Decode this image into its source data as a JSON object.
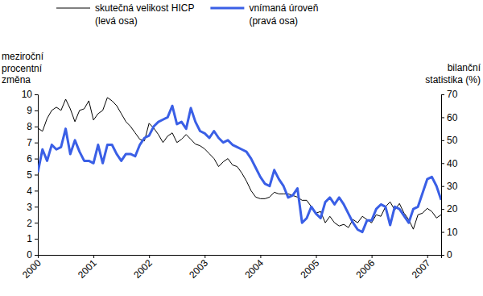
{
  "chart_data": {
    "type": "line",
    "y_label": "meziroční procentní změna",
    "y2_label": "bilanční statistika (%)",
    "categories": [
      "2000",
      null,
      null,
      null,
      null,
      null,
      null,
      null,
      null,
      null,
      null,
      null,
      "2001",
      null,
      null,
      null,
      null,
      null,
      null,
      null,
      null,
      null,
      null,
      null,
      "2002",
      null,
      null,
      null,
      null,
      null,
      null,
      null,
      null,
      null,
      null,
      null,
      "2003",
      null,
      null,
      null,
      null,
      null,
      null,
      null,
      null,
      null,
      null,
      null,
      "2004",
      null,
      null,
      null,
      null,
      null,
      null,
      null,
      null,
      null,
      null,
      null,
      "2005",
      null,
      null,
      null,
      null,
      null,
      null,
      null,
      null,
      null,
      null,
      null,
      "2006",
      null,
      null,
      null,
      null,
      null,
      null,
      null,
      null,
      null,
      null,
      null,
      "2007",
      null,
      null,
      null
    ],
    "series": [
      {
        "name": "skutečná velikost HICP (levá osa)",
        "color": "#000000",
        "axis": "y",
        "values": [
          7.9,
          7.7,
          8.5,
          9.0,
          9.2,
          9.0,
          9.7,
          9.1,
          8.3,
          9.0,
          9.1,
          9.6,
          8.4,
          8.8,
          9.0,
          9.8,
          9.6,
          9.3,
          8.8,
          8.3,
          8.0,
          7.6,
          7.2,
          7.1,
          8.2,
          7.9,
          7.5,
          7.0,
          7.4,
          7.6,
          7.0,
          7.2,
          7.5,
          7.2,
          6.9,
          6.8,
          6.6,
          6.3,
          6.0,
          5.5,
          5.8,
          6.0,
          5.6,
          5.5,
          5.1,
          4.6,
          4.0,
          3.6,
          3.5,
          3.5,
          3.6,
          3.9,
          3.8,
          3.8,
          3.8,
          3.7,
          3.6,
          3.4,
          3.4,
          3.0,
          2.6,
          2.7,
          2.0,
          2.4,
          2.0,
          1.8,
          1.9,
          1.7,
          2.2,
          2.0,
          2.4,
          2.2,
          2.0,
          2.5,
          2.4,
          3.0,
          3.3,
          2.8,
          3.2,
          2.6,
          2.2,
          1.6,
          2.5,
          2.6,
          2.9,
          2.7,
          2.3,
          2.5
        ]
      },
      {
        "name": "vnímaná úroveň (pravá osa)",
        "color": "#3a5fe6",
        "axis": "y2",
        "values": [
          36,
          46,
          41,
          48,
          46,
          47,
          55,
          44,
          50,
          45,
          41,
          41,
          40,
          48,
          40,
          48,
          48,
          44,
          41,
          44,
          44,
          43,
          48,
          51,
          52,
          56,
          58,
          59,
          60,
          65,
          57,
          58,
          55,
          64,
          58,
          54,
          53,
          51,
          54,
          51,
          49,
          50,
          48,
          47,
          46,
          45,
          42,
          38,
          34,
          31,
          30,
          37,
          33,
          30,
          25,
          26,
          29,
          14,
          16,
          21,
          18,
          16,
          23,
          25,
          22,
          25,
          22,
          18,
          14,
          11,
          10,
          15,
          15,
          20,
          22,
          21,
          13,
          21,
          20,
          17,
          14,
          20,
          21,
          27,
          33,
          34,
          30,
          24
        ]
      }
    ],
    "ylim": [
      0,
      10
    ],
    "yticks": [
      0,
      1,
      2,
      3,
      4,
      5,
      6,
      7,
      8,
      9,
      10
    ],
    "y2lim": [
      0,
      70
    ],
    "y2ticks": [
      0,
      10,
      20,
      30,
      40,
      50,
      60,
      70
    ],
    "grid": false,
    "legend": "top"
  }
}
